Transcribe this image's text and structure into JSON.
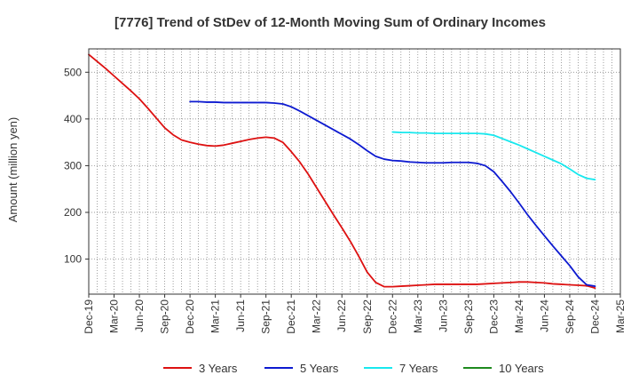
{
  "chart_data": {
    "type": "line",
    "title": "[7776]  Trend of StDev of 12-Month Moving Sum of Ordinary Incomes",
    "xlabel": "",
    "ylabel": "Amount (million yen)",
    "x_tick_labels": [
      "Dec-19",
      "Mar-20",
      "Jun-20",
      "Sep-20",
      "Dec-20",
      "Mar-21",
      "Jun-21",
      "Sep-21",
      "Dec-21",
      "Mar-22",
      "Jun-22",
      "Sep-22",
      "Dec-22",
      "Mar-23",
      "Jun-23",
      "Sep-23",
      "Dec-23",
      "Mar-24",
      "Jun-24",
      "Sep-24",
      "Dec-24",
      "Mar-25"
    ],
    "y_ticks": [
      100,
      200,
      300,
      400,
      500
    ],
    "ylim": [
      25,
      550
    ],
    "grid": true,
    "legend_position": "bottom",
    "series": [
      {
        "name": "3 Years",
        "color": "#dd1111",
        "x": [
          "2019-12",
          "2020-01",
          "2020-02",
          "2020-03",
          "2020-04",
          "2020-05",
          "2020-06",
          "2020-07",
          "2020-08",
          "2020-09",
          "2020-10",
          "2020-11",
          "2020-12",
          "2021-01",
          "2021-02",
          "2021-03",
          "2021-04",
          "2021-05",
          "2021-06",
          "2021-07",
          "2021-08",
          "2021-09",
          "2021-10",
          "2021-11",
          "2021-12",
          "2022-01",
          "2022-02",
          "2022-03",
          "2022-04",
          "2022-05",
          "2022-06",
          "2022-07",
          "2022-08",
          "2022-09",
          "2022-10",
          "2022-11",
          "2022-12",
          "2023-01",
          "2023-02",
          "2023-03",
          "2023-04",
          "2023-05",
          "2023-06",
          "2023-07",
          "2023-08",
          "2023-09",
          "2023-10",
          "2023-11",
          "2023-12",
          "2024-01",
          "2024-02",
          "2024-03",
          "2024-04",
          "2024-05",
          "2024-06",
          "2024-07",
          "2024-08",
          "2024-09",
          "2024-10",
          "2024-11",
          "2024-12"
        ],
        "values": [
          538,
          523,
          508,
          492,
          476,
          460,
          443,
          423,
          402,
          381,
          366,
          355,
          350,
          346,
          343,
          342,
          344,
          348,
          352,
          356,
          359,
          361,
          359,
          350,
          330,
          308,
          282,
          253,
          224,
          195,
          167,
          138,
          106,
          72,
          50,
          41,
          41,
          42,
          43,
          44,
          45,
          46,
          46,
          46,
          46,
          46,
          46,
          47,
          48,
          49,
          50,
          51,
          51,
          50,
          49,
          47,
          46,
          45,
          44,
          43,
          38
        ]
      },
      {
        "name": "5 Years",
        "color": "#0d1ad0",
        "x": [
          "2020-12",
          "2021-01",
          "2021-02",
          "2021-03",
          "2021-04",
          "2021-05",
          "2021-06",
          "2021-07",
          "2021-08",
          "2021-09",
          "2021-10",
          "2021-11",
          "2021-12",
          "2022-01",
          "2022-02",
          "2022-03",
          "2022-04",
          "2022-05",
          "2022-06",
          "2022-07",
          "2022-08",
          "2022-09",
          "2022-10",
          "2022-11",
          "2022-12",
          "2023-01",
          "2023-02",
          "2023-03",
          "2023-04",
          "2023-05",
          "2023-06",
          "2023-07",
          "2023-08",
          "2023-09",
          "2023-10",
          "2023-11",
          "2023-12",
          "2024-01",
          "2024-02",
          "2024-03",
          "2024-04",
          "2024-05",
          "2024-06",
          "2024-07",
          "2024-08",
          "2024-09",
          "2024-10",
          "2024-11",
          "2024-12"
        ],
        "values": [
          437,
          437,
          436,
          436,
          435,
          435,
          435,
          435,
          435,
          435,
          434,
          432,
          426,
          417,
          407,
          397,
          387,
          377,
          367,
          357,
          345,
          332,
          320,
          314,
          311,
          310,
          308,
          307,
          306,
          306,
          306,
          307,
          307,
          307,
          305,
          300,
          287,
          266,
          244,
          220,
          195,
          172,
          150,
          128,
          107,
          86,
          62,
          45,
          42
        ]
      },
      {
        "name": "7 Years",
        "color": "#18e8ee",
        "x": [
          "2022-12",
          "2023-01",
          "2023-02",
          "2023-03",
          "2023-04",
          "2023-05",
          "2023-06",
          "2023-07",
          "2023-08",
          "2023-09",
          "2023-10",
          "2023-11",
          "2023-12",
          "2024-01",
          "2024-02",
          "2024-03",
          "2024-04",
          "2024-05",
          "2024-06",
          "2024-07",
          "2024-08",
          "2024-09",
          "2024-10",
          "2024-11",
          "2024-12"
        ],
        "values": [
          372,
          371,
          371,
          370,
          370,
          369,
          369,
          369,
          369,
          369,
          369,
          368,
          365,
          358,
          351,
          344,
          336,
          328,
          320,
          312,
          304,
          293,
          281,
          273,
          270
        ]
      },
      {
        "name": "10 Years",
        "color": "#1e8a1e",
        "x": [],
        "values": []
      }
    ]
  }
}
